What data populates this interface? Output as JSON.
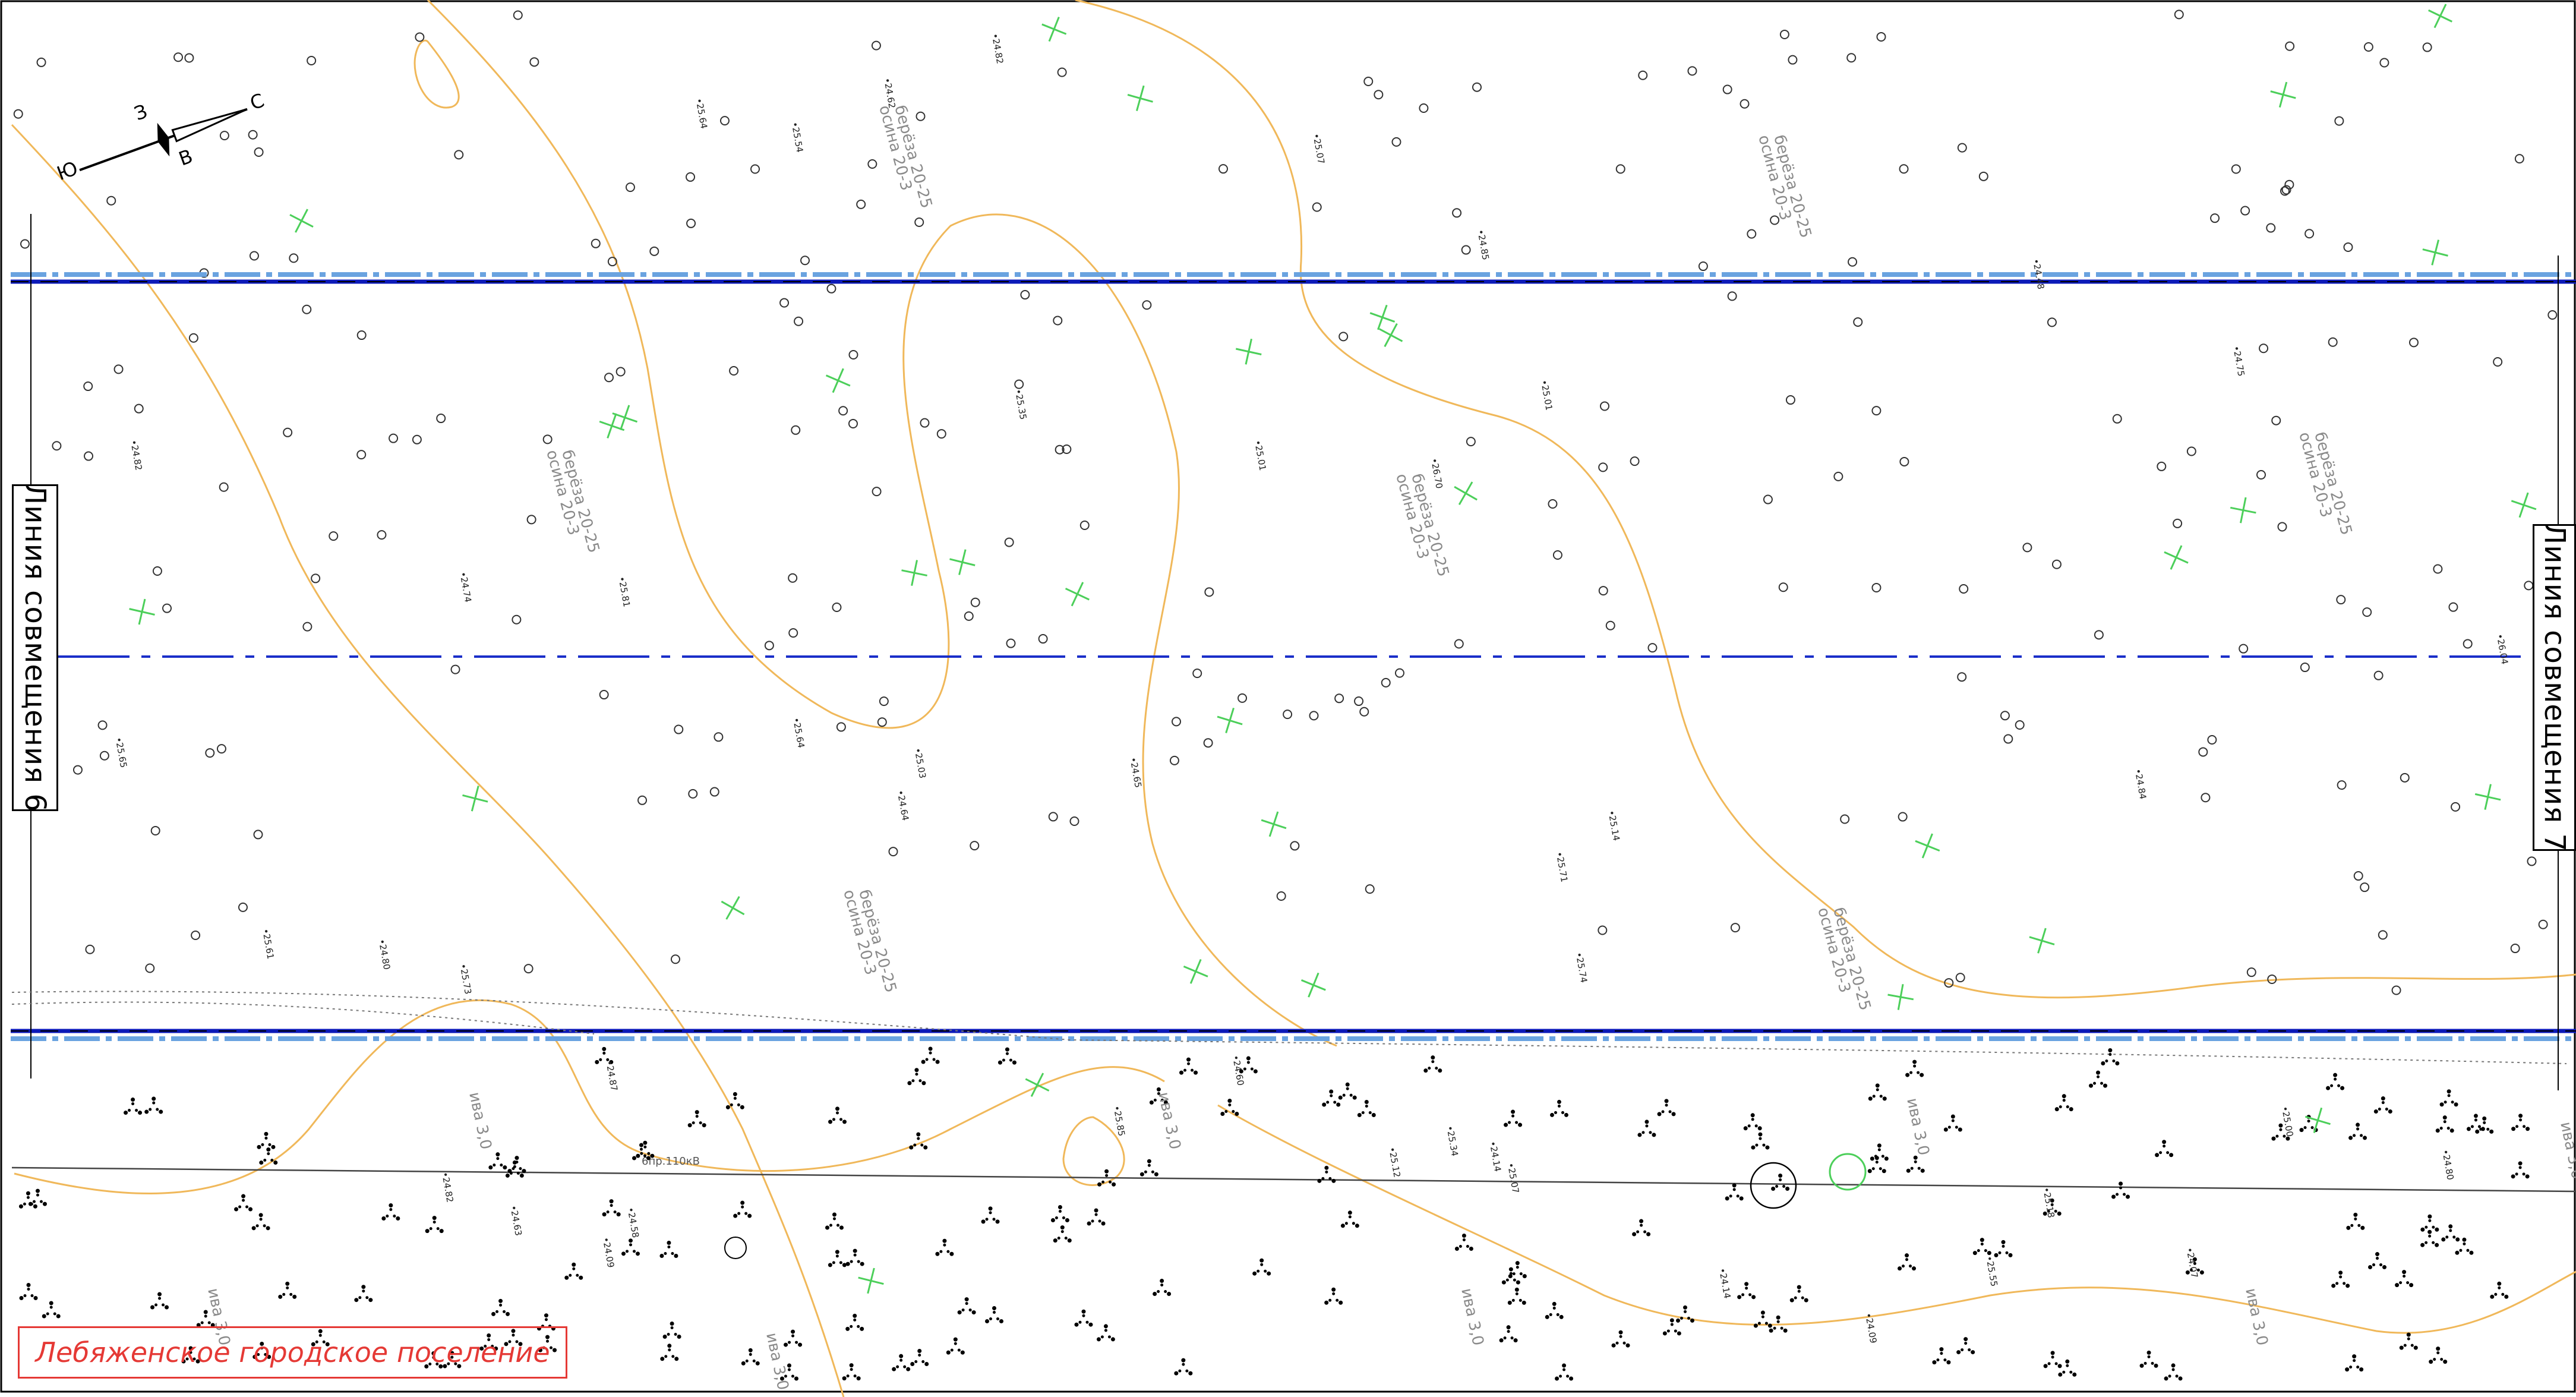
{
  "map": {
    "match_lines": {
      "left": "Линия совмещения 6",
      "right": "Линия совмещения 7"
    },
    "settlement_label": "Лебяженское городское поселение",
    "north_arrow": {
      "letters": [
        "С",
        "В",
        "Ю",
        "З"
      ]
    },
    "powerline_label": "6пр.110кВ",
    "colors": {
      "contour": "#f0b85a",
      "road_edge": "#0c1ab8",
      "road_dashed": "#6aa3e0",
      "axis": "#1a2ec9",
      "vegetation_cross": "#4ccf5a",
      "points": "#333333",
      "label_red": "#e53935",
      "annotation": "#8a8a8a"
    },
    "forest_annotations": [
      "осина 20-3\nберёза 20-25",
      "осина 20-3\nберёза 20-25",
      "осина 20-3\nберёза 20-25",
      "осина 20-3\nберёза 20-25",
      "осина 20-3\nберёза 20-25",
      "осина 20-3\nберёза 20-25",
      "осина 20-3\nберёза 20-25"
    ],
    "shrub_annotations": [
      "ива 3,0",
      "ива 3,0",
      "ива 3,0",
      "ива 3,0",
      "ива 3,0",
      "ива 3,0",
      "ива 3,0",
      "ива 3,0"
    ],
    "elevations": [
      "24.84",
      "24.85",
      "25.14",
      "24.62",
      "25.54",
      "25.71",
      "25.73",
      "25.64",
      "26.70",
      "24.82",
      "25.03",
      "24.75",
      "24.80",
      "24.65",
      "26.04",
      "25.81",
      "25.64",
      "25.35",
      "25.01",
      "24.74",
      "24.48",
      "24.82",
      "24.64",
      "25.01",
      "25.61",
      "25.74",
      "25.65",
      "25.07",
      "25.55",
      "24.58",
      "24.82",
      "24.09",
      "24.07",
      "25.07",
      "25.18",
      "25.34",
      "25.85",
      "24.14",
      "25.00",
      "24.60",
      "24.87",
      "24.80",
      "24.63",
      "24.14",
      "25.12",
      "24.09"
    ]
  }
}
